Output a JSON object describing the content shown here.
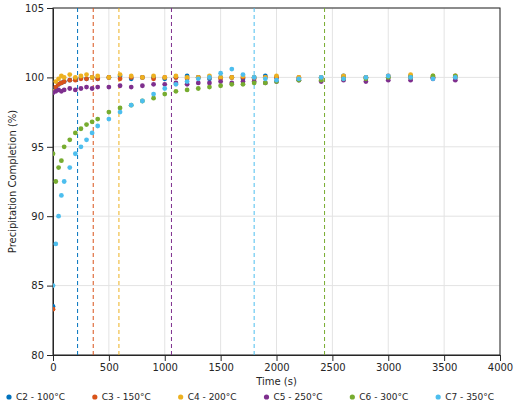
{
  "chart_data": {
    "type": "scatter",
    "x_label": "Time (s)",
    "y_label": "Precipitation Completion (%)",
    "x": [
      0,
      25,
      50,
      75,
      100,
      150,
      200,
      250,
      300,
      350,
      400,
      500,
      600,
      700,
      800,
      900,
      1000,
      1100,
      1200,
      1300,
      1400,
      1500,
      1600,
      1700,
      1800,
      1900,
      2000,
      2200,
      2400,
      2600,
      2800,
      3000,
      3200,
      3400,
      3600
    ],
    "xlim": [
      0,
      4000
    ],
    "xticks": [
      0,
      500,
      1000,
      1500,
      2000,
      2500,
      3000,
      3500,
      4000
    ],
    "ylim": [
      80,
      105
    ],
    "yticks": [
      80,
      85,
      90,
      95,
      100,
      105
    ],
    "grid": true,
    "legend": "bottom",
    "marker": "circle",
    "series": [
      {
        "name": "C2 - 100°C",
        "color": "#0072bd",
        "threshold_x": 220,
        "values": [
          83.5,
          99.2,
          99.5,
          99.6,
          99.7,
          99.8,
          99.9,
          100.0,
          99.9,
          100.0,
          99.9,
          100.0,
          100.1,
          99.9,
          100.0,
          100.0,
          99.9,
          100.0,
          100.1,
          100.0,
          99.9,
          100.0,
          100.0,
          99.9,
          100.0,
          100.1,
          100.0,
          99.9,
          100.0,
          100.1,
          100.0,
          100.0,
          100.1,
          100.0,
          100.0
        ]
      },
      {
        "name": "C3 - 150°C",
        "color": "#d95319",
        "threshold_x": 360,
        "values": [
          83.3,
          99.3,
          99.5,
          99.6,
          99.7,
          99.8,
          99.8,
          99.9,
          99.9,
          100.0,
          99.9,
          100.0,
          99.9,
          100.0,
          100.0,
          99.9,
          100.0,
          100.0,
          99.9,
          100.0,
          100.0,
          99.9,
          100.0,
          100.0,
          99.9,
          100.0,
          100.0,
          100.0,
          99.9,
          100.0,
          100.0,
          100.1,
          100.0,
          100.0,
          100.1
        ]
      },
      {
        "name": "C4 - 200°C",
        "color": "#edb120",
        "threshold_x": 590,
        "values": [
          99.0,
          99.7,
          99.9,
          100.1,
          100.0,
          100.2,
          100.0,
          100.1,
          100.2,
          100.0,
          100.1,
          100.0,
          100.2,
          100.1,
          100.0,
          100.1,
          100.0,
          100.1,
          100.0,
          100.0,
          100.1,
          100.0,
          100.0,
          100.1,
          100.0,
          100.0,
          100.1,
          100.0,
          100.0,
          100.1,
          100.0,
          100.0,
          100.2,
          100.1,
          100.0
        ]
      },
      {
        "name": "C5 - 250°C",
        "color": "#7e2f8e",
        "threshold_x": 1060,
        "values": [
          98.9,
          99.0,
          99.1,
          99.0,
          99.1,
          99.2,
          99.1,
          99.2,
          99.3,
          99.2,
          99.3,
          99.3,
          99.4,
          99.3,
          99.4,
          99.5,
          99.5,
          99.6,
          99.5,
          99.6,
          99.6,
          99.7,
          99.6,
          99.7,
          99.7,
          99.6,
          99.7,
          99.8,
          99.7,
          99.8,
          99.7,
          99.8,
          99.8,
          99.9,
          99.8
        ]
      },
      {
        "name": "C6 - 300°C",
        "color": "#77ac30",
        "threshold_x": 2430,
        "values": [
          94.5,
          92.5,
          93.5,
          94.0,
          95.0,
          95.5,
          96.0,
          96.3,
          96.6,
          96.8,
          97.0,
          97.5,
          97.8,
          98.0,
          98.3,
          98.5,
          98.8,
          99.0,
          99.1,
          99.2,
          99.3,
          99.4,
          99.5,
          99.5,
          99.6,
          99.6,
          99.7,
          99.8,
          99.8,
          99.9,
          99.9,
          100.0,
          100.0,
          100.1,
          100.1
        ]
      },
      {
        "name": "C7 - 350°C",
        "color": "#4dbeee",
        "threshold_x": 1800,
        "values": [
          85.0,
          88.0,
          90.0,
          91.5,
          92.5,
          93.5,
          94.5,
          95.0,
          95.5,
          96.0,
          96.5,
          97.0,
          97.5,
          98.0,
          98.3,
          98.8,
          99.2,
          99.5,
          99.7,
          99.9,
          100.0,
          100.3,
          100.6,
          100.2,
          100.0,
          99.9,
          99.8,
          99.9,
          100.0,
          99.9,
          100.0,
          100.1,
          100.0,
          99.9,
          100.0
        ]
      }
    ]
  }
}
